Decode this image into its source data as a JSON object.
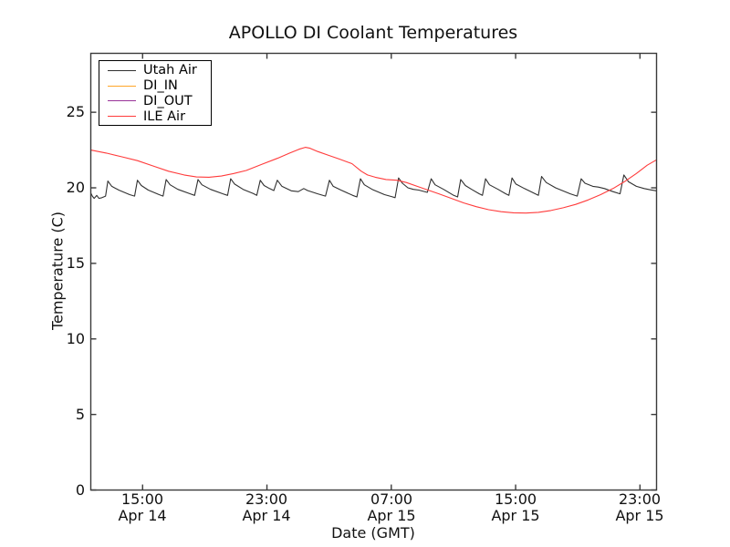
{
  "chart_data": {
    "type": "line",
    "title": "APOLLO DI Coolant Temperatures",
    "xlabel": "Date (GMT)",
    "ylabel": "Temperature (C)",
    "ylim": [
      0,
      28.9
    ],
    "xlim_hours": [
      0,
      36.4
    ],
    "grid": false,
    "legend_position": "upper-left",
    "frame_color": "#3a3a3a",
    "yticks": [
      0,
      5,
      10,
      15,
      20,
      25
    ],
    "xticks": [
      {
        "t": 3.333,
        "time": "15:00",
        "date": "Apr 14"
      },
      {
        "t": 11.333,
        "time": "23:00",
        "date": "Apr 14"
      },
      {
        "t": 19.333,
        "time": "07:00",
        "date": "Apr 15"
      },
      {
        "t": 27.333,
        "time": "15:00",
        "date": "Apr 15"
      },
      {
        "t": 35.333,
        "time": "23:00",
        "date": "Apr 15"
      }
    ],
    "series": [
      {
        "name": "Utah Air",
        "color": "#303030",
        "points": [
          [
            0,
            19.65
          ],
          [
            0.1,
            19.45
          ],
          [
            0.22,
            19.3
          ],
          [
            0.38,
            19.5
          ],
          [
            0.52,
            19.3
          ],
          [
            0.72,
            19.35
          ],
          [
            0.95,
            19.45
          ],
          [
            1.1,
            20.45
          ],
          [
            1.35,
            20.1
          ],
          [
            1.8,
            19.85
          ],
          [
            2.5,
            19.55
          ],
          [
            2.82,
            19.45
          ],
          [
            3.0,
            20.5
          ],
          [
            3.25,
            20.15
          ],
          [
            3.7,
            19.85
          ],
          [
            4.4,
            19.55
          ],
          [
            4.65,
            19.45
          ],
          [
            4.85,
            20.55
          ],
          [
            5.1,
            20.2
          ],
          [
            5.6,
            19.9
          ],
          [
            6.4,
            19.6
          ],
          [
            6.68,
            19.5
          ],
          [
            6.9,
            20.55
          ],
          [
            7.15,
            20.2
          ],
          [
            7.7,
            19.9
          ],
          [
            8.5,
            19.6
          ],
          [
            8.8,
            19.5
          ],
          [
            9.0,
            20.6
          ],
          [
            9.25,
            20.25
          ],
          [
            9.8,
            19.9
          ],
          [
            10.45,
            19.62
          ],
          [
            10.68,
            19.5
          ],
          [
            10.9,
            20.5
          ],
          [
            11.15,
            20.15
          ],
          [
            11.5,
            19.95
          ],
          [
            11.78,
            19.82
          ],
          [
            12.0,
            20.5
          ],
          [
            12.3,
            20.1
          ],
          [
            12.9,
            19.8
          ],
          [
            13.35,
            19.75
          ],
          [
            13.7,
            19.95
          ],
          [
            13.95,
            19.82
          ],
          [
            14.6,
            19.6
          ],
          [
            15.1,
            19.45
          ],
          [
            15.35,
            20.5
          ],
          [
            15.6,
            20.1
          ],
          [
            16.1,
            19.85
          ],
          [
            16.85,
            19.5
          ],
          [
            17.12,
            19.4
          ],
          [
            17.35,
            20.6
          ],
          [
            17.6,
            20.2
          ],
          [
            18.1,
            19.9
          ],
          [
            18.9,
            19.55
          ],
          [
            19.35,
            19.42
          ],
          [
            19.58,
            19.35
          ],
          [
            19.8,
            20.65
          ],
          [
            20.05,
            20.3
          ],
          [
            20.4,
            20.0
          ],
          [
            20.75,
            19.9
          ],
          [
            21.1,
            19.85
          ],
          [
            21.65,
            19.7
          ],
          [
            21.9,
            20.6
          ],
          [
            22.15,
            20.2
          ],
          [
            22.7,
            19.9
          ],
          [
            23.35,
            19.5
          ],
          [
            23.6,
            19.4
          ],
          [
            23.8,
            20.55
          ],
          [
            24.1,
            20.15
          ],
          [
            24.5,
            19.9
          ],
          [
            25.0,
            19.6
          ],
          [
            25.2,
            19.5
          ],
          [
            25.4,
            20.6
          ],
          [
            25.65,
            20.2
          ],
          [
            26.2,
            19.9
          ],
          [
            26.7,
            19.6
          ],
          [
            26.9,
            19.5
          ],
          [
            27.1,
            20.65
          ],
          [
            27.35,
            20.25
          ],
          [
            27.9,
            19.95
          ],
          [
            28.5,
            19.65
          ],
          [
            28.8,
            19.5
          ],
          [
            29.0,
            20.75
          ],
          [
            29.3,
            20.35
          ],
          [
            29.9,
            20.0
          ],
          [
            30.85,
            19.6
          ],
          [
            31.3,
            19.45
          ],
          [
            31.55,
            20.6
          ],
          [
            31.8,
            20.3
          ],
          [
            32.3,
            20.1
          ],
          [
            32.65,
            20.05
          ],
          [
            33.05,
            19.95
          ],
          [
            33.6,
            19.75
          ],
          [
            34.05,
            19.6
          ],
          [
            34.3,
            20.85
          ],
          [
            34.6,
            20.4
          ],
          [
            35.1,
            20.1
          ],
          [
            35.6,
            19.95
          ],
          [
            36.0,
            19.87
          ],
          [
            36.4,
            19.8
          ]
        ]
      },
      {
        "name": "DI_IN",
        "color": "#ffa628",
        "points": []
      },
      {
        "name": "DI_OUT",
        "color": "#993399",
        "points": []
      },
      {
        "name": "ILE Air",
        "color": "#ff3b3b",
        "points": [
          [
            0,
            22.5
          ],
          [
            1,
            22.3
          ],
          [
            2,
            22.05
          ],
          [
            3,
            21.8
          ],
          [
            4,
            21.45
          ],
          [
            5,
            21.1
          ],
          [
            6,
            20.85
          ],
          [
            6.8,
            20.72
          ],
          [
            7.6,
            20.7
          ],
          [
            8.4,
            20.78
          ],
          [
            9.2,
            20.95
          ],
          [
            10,
            21.15
          ],
          [
            11,
            21.55
          ],
          [
            12,
            21.95
          ],
          [
            12.8,
            22.3
          ],
          [
            13.4,
            22.55
          ],
          [
            13.8,
            22.68
          ],
          [
            14.1,
            22.62
          ],
          [
            14.6,
            22.4
          ],
          [
            15.3,
            22.15
          ],
          [
            16,
            21.9
          ],
          [
            16.8,
            21.6
          ],
          [
            17.4,
            21.1
          ],
          [
            17.8,
            20.85
          ],
          [
            18.3,
            20.7
          ],
          [
            19,
            20.55
          ],
          [
            19.7,
            20.5
          ],
          [
            20.3,
            20.35
          ],
          [
            21,
            20.1
          ],
          [
            21.7,
            19.85
          ],
          [
            22.4,
            19.6
          ],
          [
            23.2,
            19.3
          ],
          [
            24,
            19.0
          ],
          [
            24.8,
            18.75
          ],
          [
            25.6,
            18.55
          ],
          [
            26.4,
            18.42
          ],
          [
            27.2,
            18.35
          ],
          [
            28,
            18.33
          ],
          [
            28.8,
            18.38
          ],
          [
            29.6,
            18.5
          ],
          [
            30.4,
            18.68
          ],
          [
            31.2,
            18.9
          ],
          [
            32,
            19.2
          ],
          [
            32.8,
            19.55
          ],
          [
            33.6,
            19.95
          ],
          [
            34.4,
            20.45
          ],
          [
            35.1,
            20.95
          ],
          [
            35.8,
            21.5
          ],
          [
            36.4,
            21.85
          ]
        ]
      }
    ]
  }
}
